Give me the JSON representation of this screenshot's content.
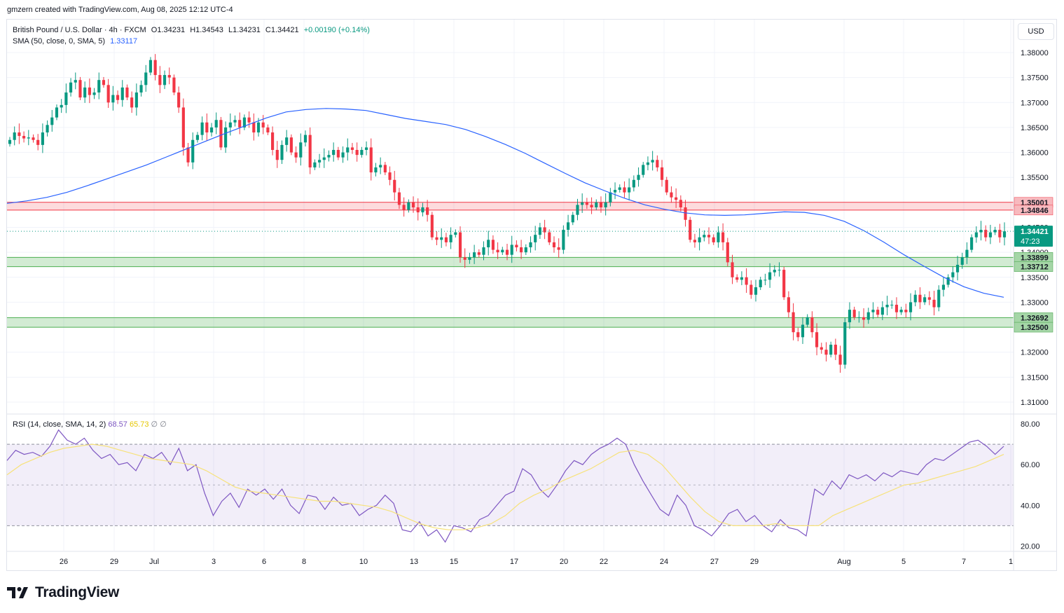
{
  "attribution": "gmzern created with TradingView.com, Aug 08, 2025 12:12 UTC-4",
  "logo_text": "TradingView",
  "legend": {
    "symbol": "British Pound / U.S. Dollar · 4h · FXCM",
    "open": "O1.34231",
    "high": "H1.34543",
    "low": "L1.34231",
    "close": "C1.34421",
    "change": "+0.00190 (+0.14%)",
    "sma_label": "SMA (50, close, 0, SMA, 5)",
    "sma_value": "1.33117"
  },
  "rsi_legend": {
    "label": "RSI (14, close, SMA, 14, 2)",
    "rsi_value": "68.57",
    "rsi_ma_value": "65.73",
    "extra1": "∅",
    "extra2": "∅"
  },
  "currency": "USD",
  "colors": {
    "up": "#089981",
    "down": "#f23645",
    "sma": "#2962ff",
    "rsi": "#7e57c2",
    "rsi_ma": "#f7e27a",
    "resistance_zone": "#f7b9be",
    "support_zone": "#b8e6c1"
  },
  "chart_data": [
    {
      "type": "candlestick",
      "pane": "price",
      "timeframe": "4h",
      "x_tick_labels": [
        "26",
        "29",
        "Jul",
        "3",
        "6",
        "8",
        "10",
        "13",
        "15",
        "17",
        "20",
        "22",
        "24",
        "27",
        "29",
        "Aug",
        "5",
        "7",
        "1"
      ],
      "y_tick_labels": [
        "1.38000",
        "1.37500",
        "1.37000",
        "1.36500",
        "1.36000",
        "1.35500",
        "1.35000",
        "1.34500",
        "1.34000",
        "1.33500",
        "1.33000",
        "1.32500",
        "1.32000",
        "1.31500",
        "1.31000"
      ],
      "ylim": [
        1.3085,
        1.3848
      ],
      "zones": [
        {
          "kind": "resistance",
          "top": 1.35001,
          "bottom": 1.34846,
          "top_label": "1.35001",
          "bottom_label": "1.34846"
        },
        {
          "kind": "support",
          "top": 1.33899,
          "bottom": 1.33712,
          "top_label": "1.33899",
          "bottom_label": "1.33712"
        },
        {
          "kind": "support",
          "top": 1.32692,
          "bottom": 1.325,
          "top_label": "1.32692",
          "bottom_label": "1.32500"
        }
      ],
      "last_price": {
        "value": 1.34421,
        "label": "1.34421",
        "countdown": "47:23"
      },
      "series_close": [
        1.3625,
        1.364,
        1.3633,
        1.3628,
        1.363,
        1.3625,
        1.3615,
        1.364,
        1.3655,
        1.367,
        1.369,
        1.3695,
        1.372,
        1.374,
        1.3745,
        1.371,
        1.373,
        1.3715,
        1.372,
        1.3745,
        1.3735,
        1.37,
        1.3715,
        1.3705,
        1.373,
        1.371,
        1.369,
        1.372,
        1.3735,
        1.376,
        1.3785,
        1.3755,
        1.3735,
        1.3755,
        1.375,
        1.372,
        1.369,
        1.361,
        1.358,
        1.3625,
        1.3635,
        1.366,
        1.364,
        1.365,
        1.3665,
        1.361,
        1.365,
        1.366,
        1.3665,
        1.365,
        1.367,
        1.366,
        1.364,
        1.366,
        1.365,
        1.364,
        1.3605,
        1.3585,
        1.3615,
        1.363,
        1.36,
        1.359,
        1.362,
        1.3635,
        1.357,
        1.358,
        1.3585,
        1.359,
        1.3595,
        1.3605,
        1.359,
        1.36,
        1.361,
        1.3605,
        1.3595,
        1.3605,
        1.361,
        1.356,
        1.357,
        1.3575,
        1.356,
        1.3545,
        1.352,
        1.3495,
        1.3485,
        1.35,
        1.349,
        1.348,
        1.349,
        1.3475,
        1.343,
        1.3425,
        1.343,
        1.342,
        1.3435,
        1.344,
        1.339,
        1.3385,
        1.339,
        1.34,
        1.3395,
        1.341,
        1.3425,
        1.3405,
        1.34,
        1.3405,
        1.3395,
        1.3415,
        1.341,
        1.34,
        1.341,
        1.342,
        1.3435,
        1.345,
        1.344,
        1.342,
        1.341,
        1.3405,
        1.3445,
        1.346,
        1.3475,
        1.3495,
        1.35,
        1.3495,
        1.349,
        1.35,
        1.349,
        1.35,
        1.352,
        1.3525,
        1.353,
        1.352,
        1.353,
        1.3545,
        1.3555,
        1.3575,
        1.358,
        1.3585,
        1.357,
        1.3545,
        1.352,
        1.351,
        1.3505,
        1.349,
        1.3465,
        1.3425,
        1.342,
        1.343,
        1.3435,
        1.343,
        1.342,
        1.344,
        1.342,
        1.338,
        1.335,
        1.3345,
        1.335,
        1.3335,
        1.3315,
        1.333,
        1.3345,
        1.3345,
        1.336,
        1.3365,
        1.3365,
        1.331,
        1.328,
        1.324,
        1.323,
        1.3255,
        1.327,
        1.324,
        1.321,
        1.3205,
        1.3195,
        1.3215,
        1.3195,
        1.3175,
        1.326,
        1.3285,
        1.327,
        1.327,
        1.3265,
        1.328,
        1.3285,
        1.3275,
        1.329,
        1.3295,
        1.3295,
        1.328,
        1.3285,
        1.328,
        1.33,
        1.3315,
        1.33,
        1.331,
        1.3305,
        1.329,
        1.3325,
        1.3335,
        1.335,
        1.336,
        1.3375,
        1.339,
        1.3405,
        1.343,
        1.344,
        1.3445,
        1.343,
        1.344,
        1.3445,
        1.343,
        1.3442
      ],
      "sma50": [
        1.3498,
        1.3503,
        1.351,
        1.352,
        1.3533,
        1.3547,
        1.3561,
        1.3575,
        1.3591,
        1.3607,
        1.3623,
        1.3639,
        1.3654,
        1.3669,
        1.3681,
        1.3686,
        1.3688,
        1.3687,
        1.3684,
        1.3676,
        1.3668,
        1.3662,
        1.3656,
        1.3646,
        1.3632,
        1.3616,
        1.3598,
        1.3578,
        1.3558,
        1.3539,
        1.3523,
        1.3508,
        1.3495,
        1.3486,
        1.3479,
        1.3475,
        1.3474,
        1.3475,
        1.3478,
        1.3481,
        1.348,
        1.3474,
        1.3462,
        1.3443,
        1.342,
        1.3395,
        1.3372,
        1.335,
        1.3331,
        1.3318,
        1.331
      ]
    },
    {
      "type": "line",
      "pane": "rsi",
      "y_tick_labels": [
        "80.00",
        "60.00",
        "40.00",
        "20.00"
      ],
      "ylim": [
        19,
        81
      ],
      "bands": {
        "upper": 70,
        "middle": 50,
        "lower": 30
      },
      "series": [
        {
          "name": "RSI",
          "values": [
            62,
            67,
            65,
            66,
            64,
            69,
            77,
            72,
            70,
            73,
            67,
            63,
            65,
            60,
            61,
            57,
            65,
            63,
            66,
            60,
            68,
            57,
            60,
            46,
            35,
            42,
            46,
            39,
            48,
            45,
            48,
            43,
            48,
            40,
            36,
            45,
            44,
            38,
            44,
            40,
            41,
            35,
            38,
            40,
            45,
            41,
            28,
            27,
            32,
            25,
            28,
            22,
            30,
            29,
            27,
            33,
            35,
            40,
            45,
            47,
            58,
            55,
            48,
            44,
            50,
            57,
            62,
            60,
            65,
            68,
            70,
            73,
            70,
            60,
            52,
            45,
            38,
            35,
            45,
            40,
            30,
            28,
            25,
            30,
            36,
            38,
            32,
            35,
            30,
            27,
            33,
            29,
            28,
            25,
            48,
            45,
            52,
            48,
            55,
            53,
            55,
            52,
            56,
            54,
            57,
            56,
            55,
            60,
            63,
            62,
            65,
            68,
            71,
            72,
            69,
            65,
            69
          ]
        },
        {
          "name": "RSI MA",
          "values": [
            55,
            60,
            63,
            66,
            68,
            69,
            70,
            69,
            67,
            65,
            63,
            62,
            61,
            60,
            57,
            53,
            49,
            47,
            46,
            45,
            44,
            43,
            42,
            42,
            41,
            40,
            39,
            37,
            34,
            31,
            29,
            28,
            28,
            29,
            31,
            35,
            41,
            45,
            48,
            52,
            55,
            58,
            62,
            66,
            67,
            65,
            60,
            52,
            44,
            37,
            32,
            30,
            30,
            30,
            31,
            30,
            30,
            30,
            35,
            38,
            41,
            44,
            47,
            50,
            51,
            53,
            55,
            57,
            59,
            62,
            65
          ]
        }
      ]
    }
  ]
}
